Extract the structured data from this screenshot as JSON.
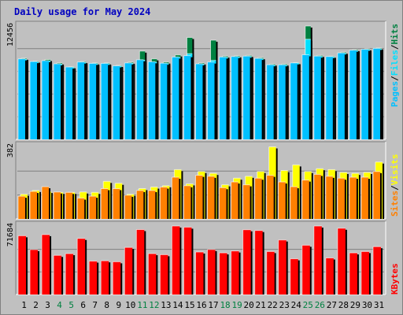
{
  "title": "Daily usage for May 2024",
  "colors": {
    "background": "#c0c0c0",
    "hits": "#008040",
    "files": "#00e0ff",
    "pages": "#00c0ff",
    "visits": "#ffff00",
    "sites": "#ff8000",
    "kbytes": "#ff0000",
    "title": "#0000c0",
    "weekend": "#008040",
    "weekday": "#000080"
  },
  "legend": {
    "top": [
      "Pages",
      "Files",
      "Hits"
    ],
    "middle": [
      "Sites",
      "Visits"
    ],
    "bottom": [
      "KBytes"
    ],
    "separator": "/"
  },
  "chart_data": [
    {
      "type": "bar",
      "panel": "top",
      "ymax_label": "12456",
      "ylim": [
        0,
        12456
      ],
      "categories": [
        "1",
        "2",
        "3",
        "4",
        "5",
        "6",
        "7",
        "8",
        "9",
        "10",
        "11",
        "12",
        "13",
        "14",
        "15",
        "16",
        "17",
        "18",
        "19",
        "20",
        "21",
        "22",
        "23",
        "24",
        "25",
        "26",
        "27",
        "28",
        "29",
        "30",
        "31"
      ],
      "weekend_days": [
        4,
        5,
        11,
        12,
        18,
        19,
        25,
        26
      ],
      "series": [
        {
          "name": "Hits",
          "values": [
            8920,
            8600,
            8780,
            8400,
            7980,
            8550,
            8400,
            8400,
            8130,
            8480,
            9700,
            8850,
            8500,
            9280,
            11200,
            8400,
            10900,
            9150,
            9180,
            9230,
            8980,
            8280,
            8280,
            8440,
            12456,
            9230,
            9140,
            9580,
            9870,
            9950,
            10050
          ]
        },
        {
          "name": "Files",
          "values": [
            8800,
            8500,
            8600,
            8250,
            7900,
            8450,
            8300,
            8300,
            8050,
            8350,
            8700,
            8480,
            8320,
            9000,
            9420,
            8250,
            8680,
            9000,
            9050,
            9100,
            8850,
            8150,
            8150,
            8380,
            11000,
            9100,
            9050,
            9450,
            9750,
            9850,
            9950
          ]
        },
        {
          "name": "Pages",
          "values": [
            8850,
            8550,
            8650,
            8300,
            7950,
            8500,
            8350,
            8350,
            8080,
            8400,
            8750,
            8530,
            8370,
            9050,
            9200,
            8300,
            8500,
            9050,
            9100,
            9150,
            8900,
            8200,
            8200,
            8400,
            9300,
            9150,
            9100,
            9500,
            9800,
            9900,
            10000
          ]
        }
      ]
    },
    {
      "type": "bar",
      "panel": "middle",
      "ymax_label": "382",
      "ylim": [
        0,
        382
      ],
      "categories": [
        "1",
        "2",
        "3",
        "4",
        "5",
        "6",
        "7",
        "8",
        "9",
        "10",
        "11",
        "12",
        "13",
        "14",
        "15",
        "16",
        "17",
        "18",
        "19",
        "20",
        "21",
        "22",
        "23",
        "24",
        "25",
        "26",
        "27",
        "28",
        "29",
        "30",
        "31"
      ],
      "series": [
        {
          "name": "Visits",
          "values": [
            130,
            150,
            145,
            140,
            140,
            142,
            140,
            198,
            188,
            130,
            160,
            168,
            175,
            260,
            185,
            250,
            240,
            180,
            215,
            225,
            250,
            380,
            255,
            285,
            250,
            265,
            260,
            245,
            240,
            245,
            300
          ]
        },
        {
          "name": "Sites",
          "values": [
            120,
            145,
            170,
            142,
            140,
            110,
            120,
            160,
            160,
            125,
            150,
            150,
            168,
            220,
            175,
            230,
            225,
            165,
            195,
            180,
            215,
            230,
            195,
            170,
            205,
            235,
            225,
            215,
            220,
            220,
            250
          ]
        }
      ]
    },
    {
      "type": "bar",
      "panel": "bottom",
      "ymax_label": "71684",
      "ylim": [
        0,
        71684
      ],
      "categories": [
        "1",
        "2",
        "3",
        "4",
        "5",
        "6",
        "7",
        "8",
        "9",
        "10",
        "11",
        "12",
        "13",
        "14",
        "15",
        "16",
        "17",
        "18",
        "19",
        "20",
        "21",
        "22",
        "23",
        "24",
        "25",
        "26",
        "27",
        "28",
        "29",
        "30",
        "31"
      ],
      "series": [
        {
          "name": "KBytes",
          "values": [
            61500,
            47000,
            62700,
            41000,
            42800,
            58700,
            35000,
            35300,
            34300,
            49300,
            68000,
            42800,
            41700,
            71684,
            70500,
            44500,
            47100,
            43600,
            45600,
            67800,
            67000,
            45000,
            57100,
            37400,
            51600,
            71684,
            38300,
            69400,
            43600,
            45000,
            50100
          ]
        }
      ]
    }
  ]
}
